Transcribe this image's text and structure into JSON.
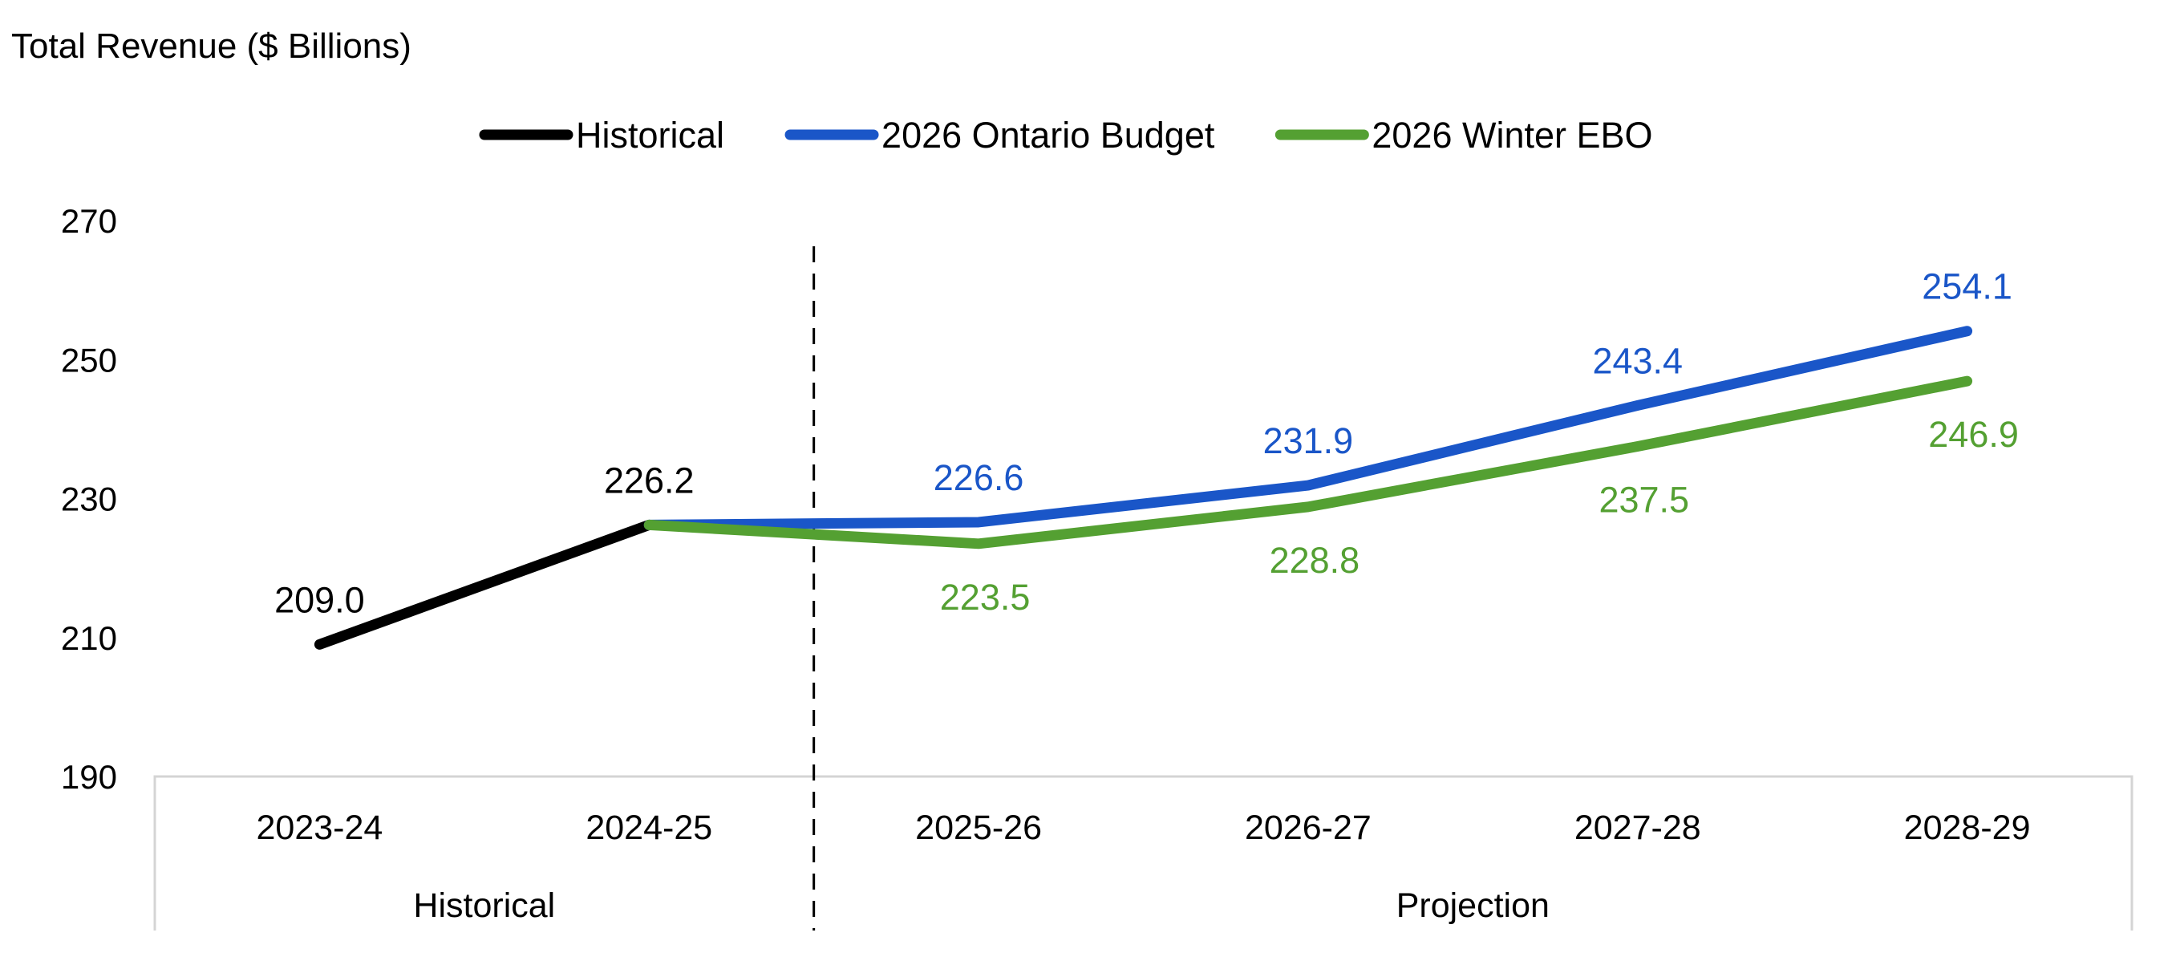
{
  "chart_data": {
    "type": "line",
    "title": "Total Revenue ($ Billions)",
    "xlabel": "",
    "ylabel": "",
    "categories": [
      "2023-24",
      "2024-25",
      "2025-26",
      "2026-27",
      "2027-28",
      "2028-29"
    ],
    "category_groups": [
      {
        "label": "Historical",
        "from": 0,
        "to": 1
      },
      {
        "label": "Projection",
        "from": 2,
        "to": 5
      }
    ],
    "ylim": [
      190,
      270
    ],
    "yticks": [
      190,
      210,
      230,
      250,
      270
    ],
    "grid": false,
    "legend_position": "top-center",
    "divider_between": [
      1,
      2
    ],
    "series": [
      {
        "name": "Historical",
        "color": "#000000",
        "label_color": "#000000",
        "values": [
          209.0,
          226.2,
          null,
          null,
          null,
          null
        ],
        "labels": [
          "209.0",
          "226.2",
          null,
          null,
          null,
          null
        ],
        "label_side": "above"
      },
      {
        "name": "2026 Ontario Budget",
        "color": "#1a56c8",
        "label_color": "#1a56c8",
        "values": [
          null,
          226.2,
          226.6,
          231.9,
          243.4,
          254.1
        ],
        "labels": [
          null,
          null,
          "226.6",
          "231.9",
          "243.4",
          "254.1"
        ],
        "label_side": "above"
      },
      {
        "name": "2026 Winter EBO",
        "color": "#54a032",
        "label_color": "#54a032",
        "values": [
          null,
          226.2,
          223.5,
          228.8,
          237.5,
          246.9
        ],
        "labels": [
          null,
          null,
          "223.5",
          "228.8",
          "237.5",
          "246.9"
        ],
        "label_side": "below"
      }
    ]
  }
}
